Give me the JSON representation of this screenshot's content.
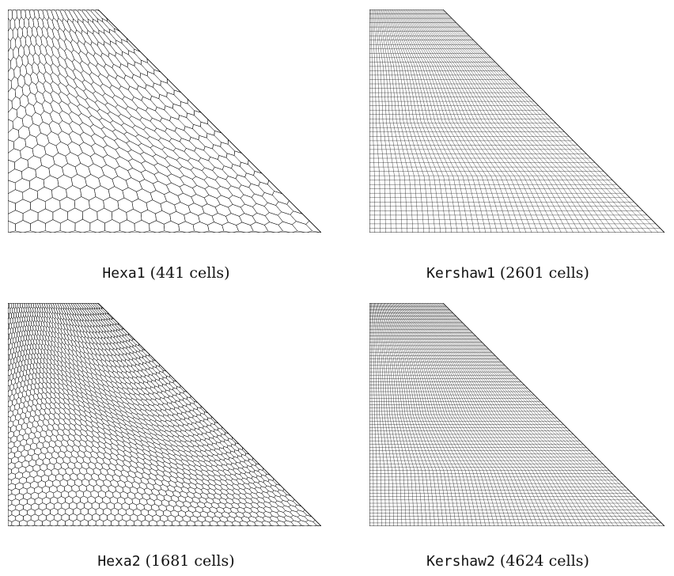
{
  "panels": [
    {
      "name": "Hexa1",
      "count_text": "(441 cells)",
      "kind": "hexa",
      "cells_per_side": 21
    },
    {
      "name": "Kershaw1",
      "count_text": "(2601 cells)",
      "kind": "kershaw",
      "cells_per_side": 51
    },
    {
      "name": "Hexa2",
      "count_text": "(1681 cells)",
      "kind": "hexa",
      "cells_per_side": 41
    },
    {
      "name": "Kershaw2",
      "count_text": "(4624 cells)",
      "kind": "kershaw",
      "cells_per_side": 68
    }
  ],
  "colors": {
    "line": "#000000",
    "background": "#ffffff"
  }
}
